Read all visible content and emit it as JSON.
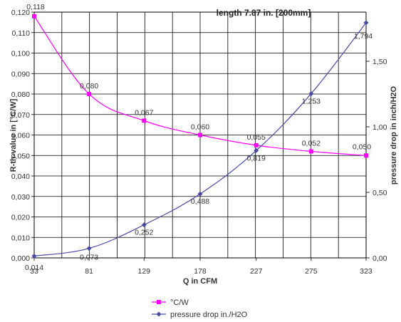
{
  "chart_data": {
    "type": "line",
    "title": "length 7.87 in. [200mm]",
    "xlabel": "Q in CFM",
    "ylabel_left": "R-th-value in [°C/W]",
    "ylabel_right": "pressure drop in inch/H2O",
    "x_ticks": [
      "33",
      "81",
      "129",
      "178",
      "227",
      "275",
      "323"
    ],
    "y_left_ticks": [
      "0,000",
      "0,010",
      "0,020",
      "0,030",
      "0,040",
      "0,050",
      "0,060",
      "0,070",
      "0,080",
      "0,090",
      "0,100",
      "0,110",
      "0,120"
    ],
    "y_right_ticks": [
      "0,00",
      "0,50",
      "1,00",
      "1,50"
    ],
    "ylim_left": [
      0,
      0.12
    ],
    "ylim_right": [
      0,
      1.875
    ],
    "grid": true,
    "legend_position": "bottom",
    "series": [
      {
        "name": "°C/W",
        "color": "#ff00ff",
        "marker": "square",
        "axis": "left",
        "x": [
          33,
          81,
          129,
          178,
          227,
          275,
          323
        ],
        "values": [
          0.118,
          0.08,
          0.067,
          0.06,
          0.055,
          0.052,
          0.05
        ],
        "labels": [
          "0,118",
          "0,080",
          "0,067",
          "0,060",
          "0,055",
          "0,052",
          "0,050"
        ]
      },
      {
        "name": "pressure drop in./H2O",
        "color": "#4a4aa4",
        "marker": "diamond",
        "axis": "right",
        "x": [
          33,
          81,
          129,
          178,
          227,
          275,
          323
        ],
        "values": [
          0.014,
          0.073,
          0.252,
          0.488,
          0.819,
          1.253,
          1.794
        ],
        "labels": [
          "0,014",
          "0,073",
          "0,252",
          "0,488",
          "0,819",
          "1,253",
          "1,794"
        ]
      }
    ]
  }
}
